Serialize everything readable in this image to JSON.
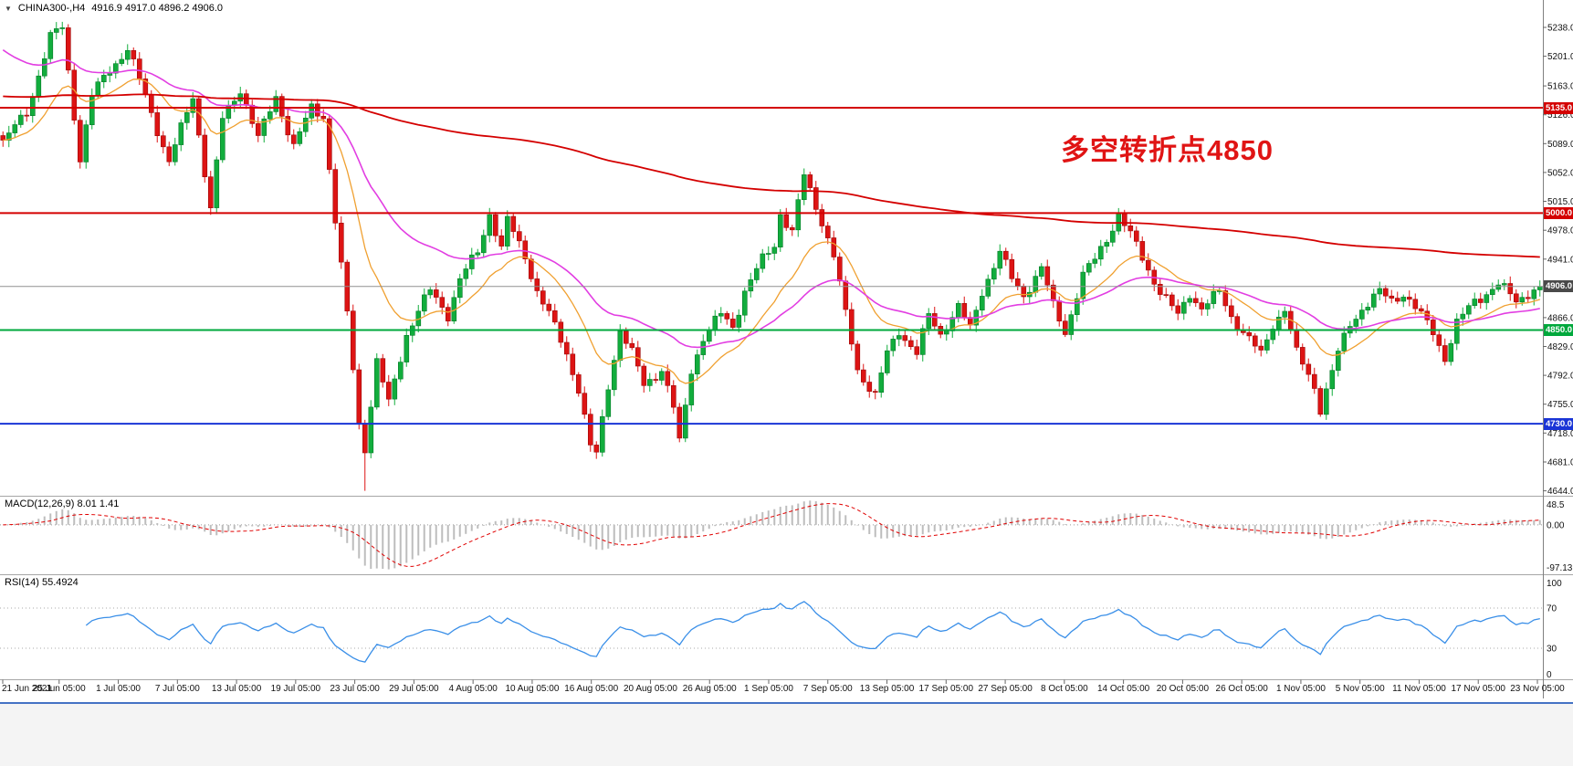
{
  "window": {
    "title_symbol": "CHINA300-,H4",
    "ohlc": "4916.9 4917.0 4896.2 4906.0"
  },
  "icons": {
    "symbol_menu": "▼"
  },
  "annotation": {
    "text": "多空转折点4850",
    "color": "#e01414"
  },
  "indicators": {
    "macd": {
      "label": "MACD(12,26,9) 8.01 1.41",
      "axis": [
        "48.5",
        "0.00",
        "-97.13"
      ]
    },
    "rsi": {
      "label": "RSI(14) 55.4924",
      "axis": [
        "100",
        "70",
        "30",
        "0"
      ],
      "levels": [
        70,
        30
      ]
    }
  },
  "price_axis": {
    "ticks": [
      5238,
      5201,
      5163,
      5126,
      5089,
      5052,
      5015,
      4978,
      4941,
      4866,
      4829,
      4792,
      4755,
      4718,
      4681,
      4644
    ],
    "tags": [
      {
        "value": "5135.0",
        "price": 5135,
        "color": "#d40000",
        "name": "resistance-5135"
      },
      {
        "value": "5000.0",
        "price": 5000,
        "color": "#d40000",
        "name": "resistance-5000"
      },
      {
        "value": "4906.0",
        "price": 4906,
        "color": "#4a4a4a",
        "name": "current-price"
      },
      {
        "value": "4850.0",
        "price": 4850,
        "color": "#00a83c",
        "name": "support-4850"
      },
      {
        "value": "4730.0",
        "price": 4730,
        "color": "#1a35d6",
        "name": "support-4730"
      }
    ]
  },
  "x_axis": {
    "labels": [
      "21 Jun 2021",
      "25 Jun 05:00",
      "1 Jul 05:00",
      "7 Jul 05:00",
      "13 Jul 05:00",
      "19 Jul 05:00",
      "23 Jul 05:00",
      "29 Jul 05:00",
      "4 Aug 05:00",
      "10 Aug 05:00",
      "16 Aug 05:00",
      "20 Aug 05:00",
      "26 Aug 05:00",
      "1 Sep 05:00",
      "7 Sep 05:00",
      "13 Sep 05:00",
      "17 Sep 05:00",
      "27 Sep 05:00",
      "8 Oct 05:00",
      "14 Oct 05:00",
      "20 Oct 05:00",
      "26 Oct 05:00",
      "1 Nov 05:00",
      "5 Nov 05:00",
      "11 Nov 05:00",
      "17 Nov 05:00",
      "23 Nov 05:00"
    ]
  },
  "colors": {
    "candle_up": "#12ad3d",
    "candle_up_border": "#067a28",
    "candle_down": "#dd1414",
    "candle_down_border": "#9c0808",
    "current_line": "#909090",
    "macd_hist": "#bdbdbd",
    "macd_signal": "#e00000",
    "rsi_line": "#3a8fe8",
    "level_dotted": "#aaaaaa",
    "separator": "#a6a6a6",
    "axis_line": "#808080",
    "tick_text": "#111111",
    "scrollbar": "#4472c4"
  },
  "chart_data": {
    "type": "candlestick",
    "symbol": "CHINA300-",
    "timeframe": "H4",
    "title": "CHINA300-,H4 4916.9 4917.0 4896.2 4906.0",
    "bars": 260,
    "ylim": [
      4640,
      5252
    ],
    "current_close": 4906.0,
    "price_path": [
      [
        0,
        5090
      ],
      [
        4,
        5130
      ],
      [
        8,
        5225
      ],
      [
        10,
        5238
      ],
      [
        13,
        5070
      ],
      [
        15,
        5150
      ],
      [
        18,
        5185
      ],
      [
        21,
        5210
      ],
      [
        24,
        5150
      ],
      [
        28,
        5065
      ],
      [
        32,
        5150
      ],
      [
        35,
        5005
      ],
      [
        37,
        5120
      ],
      [
        40,
        5160
      ],
      [
        43,
        5095
      ],
      [
        46,
        5150
      ],
      [
        49,
        5085
      ],
      [
        52,
        5135
      ],
      [
        54,
        5125
      ],
      [
        56,
        4990
      ],
      [
        58,
        4870
      ],
      [
        60,
        4730
      ],
      [
        61,
        4700
      ],
      [
        63,
        4810
      ],
      [
        65,
        4755
      ],
      [
        68,
        4845
      ],
      [
        70,
        4875
      ],
      [
        72,
        4900
      ],
      [
        75,
        4870
      ],
      [
        77,
        4915
      ],
      [
        80,
        4950
      ],
      [
        82,
        5000
      ],
      [
        84,
        4955
      ],
      [
        85,
        4990
      ],
      [
        88,
        4945
      ],
      [
        90,
        4900
      ],
      [
        92,
        4870
      ],
      [
        95,
        4820
      ],
      [
        97,
        4775
      ],
      [
        99,
        4700
      ],
      [
        100,
        4690
      ],
      [
        102,
        4780
      ],
      [
        104,
        4850
      ],
      [
        106,
        4820
      ],
      [
        108,
        4780
      ],
      [
        111,
        4800
      ],
      [
        113,
        4750
      ],
      [
        114,
        4705
      ],
      [
        116,
        4800
      ],
      [
        118,
        4840
      ],
      [
        121,
        4870
      ],
      [
        123,
        4855
      ],
      [
        125,
        4900
      ],
      [
        128,
        4940
      ],
      [
        130,
        4960
      ],
      [
        131,
        5000
      ],
      [
        133,
        4975
      ],
      [
        135,
        5048
      ],
      [
        138,
        4990
      ],
      [
        140,
        4945
      ],
      [
        142,
        4870
      ],
      [
        144,
        4800
      ],
      [
        147,
        4765
      ],
      [
        149,
        4820
      ],
      [
        151,
        4850
      ],
      [
        154,
        4820
      ],
      [
        156,
        4868
      ],
      [
        158,
        4845
      ],
      [
        161,
        4880
      ],
      [
        163,
        4850
      ],
      [
        165,
        4900
      ],
      [
        168,
        4950
      ],
      [
        170,
        4915
      ],
      [
        172,
        4895
      ],
      [
        175,
        4930
      ],
      [
        177,
        4880
      ],
      [
        179,
        4848
      ],
      [
        182,
        4920
      ],
      [
        184,
        4940
      ],
      [
        186,
        4968
      ],
      [
        188,
        4998
      ],
      [
        191,
        4958
      ],
      [
        193,
        4928
      ],
      [
        195,
        4900
      ],
      [
        198,
        4868
      ],
      [
        200,
        4898
      ],
      [
        202,
        4878
      ],
      [
        205,
        4898
      ],
      [
        207,
        4868
      ],
      [
        209,
        4848
      ],
      [
        212,
        4818
      ],
      [
        214,
        4858
      ],
      [
        216,
        4878
      ],
      [
        218,
        4820
      ],
      [
        221,
        4778
      ],
      [
        222,
        4750
      ],
      [
        225,
        4820
      ],
      [
        227,
        4858
      ],
      [
        229,
        4878
      ],
      [
        232,
        4898
      ],
      [
        234,
        4888
      ],
      [
        236,
        4898
      ],
      [
        238,
        4878
      ],
      [
        241,
        4848
      ],
      [
        243,
        4815
      ],
      [
        245,
        4858
      ],
      [
        248,
        4888
      ],
      [
        250,
        4898
      ],
      [
        252,
        4908
      ],
      [
        255,
        4888
      ],
      [
        257,
        4898
      ],
      [
        259,
        4906
      ]
    ],
    "spike_low": {
      "index": 61,
      "price": 4644
    },
    "levels": [
      {
        "price": 5135,
        "color": "#d40000",
        "width": 2,
        "role": "resistance"
      },
      {
        "price": 5000,
        "color": "#d40000",
        "width": 2,
        "role": "resistance"
      },
      {
        "price": 4850,
        "color": "#00a83c",
        "width": 2,
        "role": "support"
      },
      {
        "price": 4730,
        "color": "#1a35d6",
        "width": 2,
        "role": "support"
      },
      {
        "price": 4906,
        "color": "#909090",
        "width": 1,
        "role": "current-price"
      }
    ],
    "moving_averages": [
      {
        "name": "ma-fast",
        "period": 16,
        "seed": null,
        "color": "#f0a030",
        "width": 1.3
      },
      {
        "name": "ma-medium",
        "period": 40,
        "seed": 5215,
        "color": "#e23ee2",
        "width": 1.6
      },
      {
        "name": "ma-slow",
        "period": 300,
        "seed": 5150,
        "color": "#d40000",
        "width": 1.8
      }
    ],
    "macd": {
      "fast": 12,
      "slow": 26,
      "signal": 9,
      "current_main": 8.01,
      "current_signal": 1.41,
      "axis_range": [
        -97.13,
        48.5
      ]
    },
    "rsi": {
      "period": 14,
      "current": 55.4924,
      "range": [
        0,
        100
      ]
    }
  }
}
